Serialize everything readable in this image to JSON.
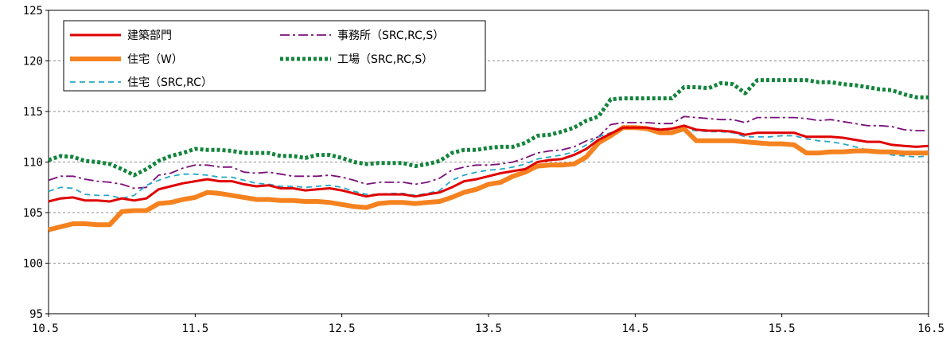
{
  "chart_data": {
    "type": "line",
    "title": "",
    "xlabel": "",
    "ylabel": "",
    "xlim": [
      10.5,
      16.5
    ],
    "ylim": [
      95,
      125
    ],
    "x_ticks": [
      "10.5",
      "11.5",
      "12.5",
      "13.5",
      "14.5",
      "15.5",
      "16.5"
    ],
    "y_ticks": [
      "95",
      "100",
      "105",
      "110",
      "115",
      "120",
      "125"
    ],
    "grid": "horizontal dashed",
    "legend_position": "top-left inside plot, two columns",
    "x": [
      10.5,
      10.583,
      10.667,
      10.75,
      10.833,
      10.917,
      11.0,
      11.083,
      11.167,
      11.25,
      11.333,
      11.417,
      11.5,
      11.583,
      11.667,
      11.75,
      11.833,
      11.917,
      12.0,
      12.083,
      12.167,
      12.25,
      12.333,
      12.417,
      12.5,
      12.583,
      12.667,
      12.75,
      12.833,
      12.917,
      13.0,
      13.083,
      13.167,
      13.25,
      13.333,
      13.417,
      13.5,
      13.583,
      13.667,
      13.75,
      13.833,
      13.917,
      14.0,
      14.083,
      14.167,
      14.25,
      14.333,
      14.417,
      14.5,
      14.583,
      14.667,
      14.75,
      14.833,
      14.917,
      15.0,
      15.083,
      15.167,
      15.25,
      15.333,
      15.417,
      15.5,
      15.583,
      15.667,
      15.75,
      15.833,
      15.917,
      16.0,
      16.083,
      16.167,
      16.25,
      16.333,
      16.417,
      16.5
    ],
    "series": [
      {
        "name": "建築部門",
        "color": "#e00000",
        "style": "solid",
        "values": [
          106.1,
          106.4,
          106.5,
          106.2,
          106.2,
          106.1,
          106.4,
          106.2,
          106.4,
          107.3,
          107.6,
          107.9,
          108.1,
          108.3,
          108.1,
          108.1,
          107.8,
          107.6,
          107.7,
          107.4,
          107.4,
          107.2,
          107.3,
          107.4,
          107.2,
          106.9,
          106.6,
          106.8,
          106.8,
          106.8,
          106.6,
          106.8,
          107.0,
          107.5,
          108.1,
          108.3,
          108.6,
          108.9,
          109.1,
          109.3,
          110.0,
          110.2,
          110.3,
          110.7,
          111.3,
          112.2,
          112.8,
          113.4,
          113.4,
          113.4,
          113.2,
          113.3,
          113.6,
          113.2,
          113.1,
          113.1,
          113.0,
          112.7,
          112.9,
          112.9,
          112.9,
          112.9,
          112.5,
          112.5,
          112.5,
          112.4,
          112.2,
          112.0,
          112.0,
          111.7,
          111.6,
          111.5,
          111.6
        ]
      },
      {
        "name": "住宅（W）",
        "color": "#f5821f",
        "style": "thick",
        "values": [
          103.3,
          103.6,
          103.9,
          103.9,
          103.8,
          103.8,
          105.1,
          105.2,
          105.2,
          105.9,
          106.0,
          106.3,
          106.5,
          107.0,
          106.9,
          106.7,
          106.5,
          106.3,
          106.3,
          106.2,
          106.2,
          106.1,
          106.1,
          106.0,
          105.8,
          105.6,
          105.5,
          105.9,
          106.0,
          106.0,
          105.9,
          106.0,
          106.1,
          106.5,
          107.0,
          107.3,
          107.8,
          108.0,
          108.6,
          109.0,
          109.6,
          109.7,
          109.7,
          109.8,
          110.5,
          111.9,
          112.6,
          113.4,
          113.4,
          113.3,
          112.9,
          112.9,
          113.3,
          112.1,
          112.1,
          112.1,
          112.1,
          112.0,
          111.9,
          111.8,
          111.8,
          111.7,
          110.9,
          110.9,
          111.0,
          111.0,
          111.1,
          111.1,
          111.0,
          111.0,
          110.9,
          110.9,
          110.9
        ]
      },
      {
        "name": "住宅（SRC,RC）",
        "color": "#27a8c8",
        "style": "dashed",
        "values": [
          107.1,
          107.5,
          107.4,
          106.8,
          106.7,
          106.7,
          106.4,
          106.7,
          107.7,
          108.2,
          108.6,
          108.8,
          108.8,
          108.7,
          108.5,
          108.5,
          108.2,
          107.9,
          107.8,
          107.6,
          107.6,
          107.5,
          107.6,
          107.7,
          107.5,
          107.1,
          106.8,
          106.8,
          106.9,
          106.9,
          106.7,
          106.9,
          107.2,
          108.2,
          108.7,
          109.0,
          109.2,
          109.3,
          109.5,
          109.8,
          110.3,
          110.5,
          110.7,
          111.0,
          111.7,
          112.5,
          112.9,
          113.3,
          113.3,
          113.3,
          113.3,
          113.1,
          113.2,
          113.1,
          113.0,
          113.0,
          112.9,
          112.5,
          112.5,
          112.5,
          112.6,
          112.6,
          112.3,
          112.1,
          112.0,
          111.8,
          111.5,
          111.2,
          111.0,
          110.7,
          110.6,
          110.5,
          110.6
        ]
      },
      {
        "name": "事務所（SRC,RC,S）",
        "color": "#7b0f7a",
        "style": "dashdot",
        "values": [
          108.2,
          108.6,
          108.6,
          108.3,
          108.1,
          108.0,
          107.8,
          107.4,
          107.5,
          108.7,
          108.9,
          109.4,
          109.7,
          109.7,
          109.5,
          109.5,
          109.0,
          108.9,
          109.0,
          108.8,
          108.6,
          108.6,
          108.6,
          108.7,
          108.5,
          108.2,
          107.8,
          108.0,
          108.0,
          108.0,
          107.8,
          108.0,
          108.4,
          109.2,
          109.5,
          109.7,
          109.7,
          109.8,
          110.0,
          110.4,
          110.9,
          111.1,
          111.2,
          111.5,
          112.1,
          112.5,
          113.7,
          113.9,
          113.9,
          113.9,
          113.8,
          113.8,
          114.5,
          114.4,
          114.3,
          114.2,
          114.2,
          113.9,
          114.4,
          114.4,
          114.4,
          114.4,
          114.3,
          114.1,
          114.2,
          114.0,
          113.8,
          113.6,
          113.6,
          113.5,
          113.2,
          113.1,
          113.1
        ]
      },
      {
        "name": "工場（SRC,RC,S）",
        "color": "#13843c",
        "style": "dotted",
        "values": [
          110.2,
          110.6,
          110.5,
          110.1,
          110.0,
          109.8,
          109.3,
          108.7,
          109.3,
          110.1,
          110.6,
          110.9,
          111.3,
          111.2,
          111.2,
          111.1,
          110.9,
          110.9,
          110.9,
          110.6,
          110.6,
          110.4,
          110.7,
          110.7,
          110.4,
          110.0,
          109.8,
          109.9,
          109.9,
          109.9,
          109.6,
          109.8,
          110.1,
          110.9,
          111.2,
          111.2,
          111.4,
          111.5,
          111.5,
          111.9,
          112.6,
          112.7,
          113.0,
          113.4,
          114.1,
          114.5,
          116.2,
          116.3,
          116.3,
          116.3,
          116.3,
          116.3,
          117.4,
          117.4,
          117.3,
          117.8,
          117.7,
          116.8,
          118.1,
          118.1,
          118.1,
          118.1,
          118.1,
          117.9,
          117.9,
          117.7,
          117.6,
          117.4,
          117.2,
          117.1,
          116.7,
          116.4,
          116.4
        ]
      }
    ]
  }
}
